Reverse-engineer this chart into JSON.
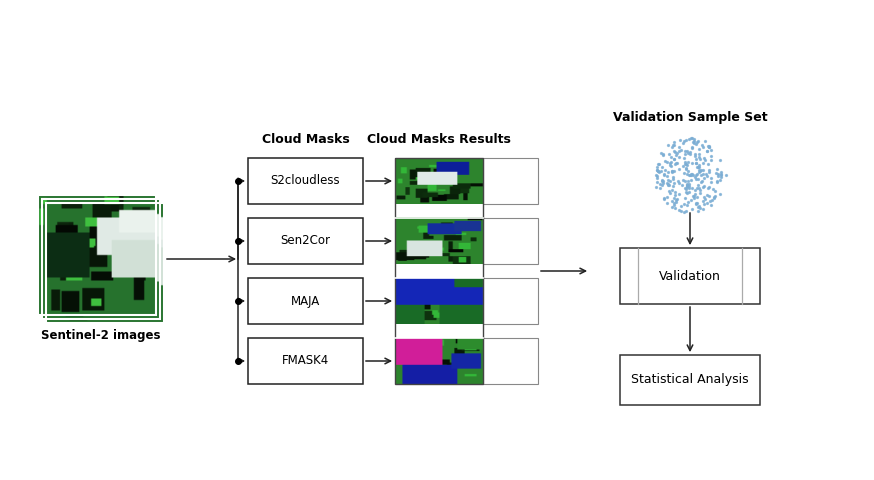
{
  "sentinel_label": "Sentinel-2 images",
  "cloud_masks_title": "Cloud Masks",
  "cloud_masks_results_title": "Cloud Masks Results",
  "validation_sample_title": "Validation Sample Set",
  "algorithms": [
    "S2cloudless",
    "Sen2Cor",
    "MAJA",
    "FMASK4"
  ],
  "validation_box_label": "Validation",
  "statistical_box_label": "Statistical Analysis",
  "arrow_color": "#222222",
  "box_edge_color": "#222222",
  "scatter_color": "#7aadd4",
  "fig_width": 8.74,
  "fig_height": 4.8,
  "dpi": 100
}
